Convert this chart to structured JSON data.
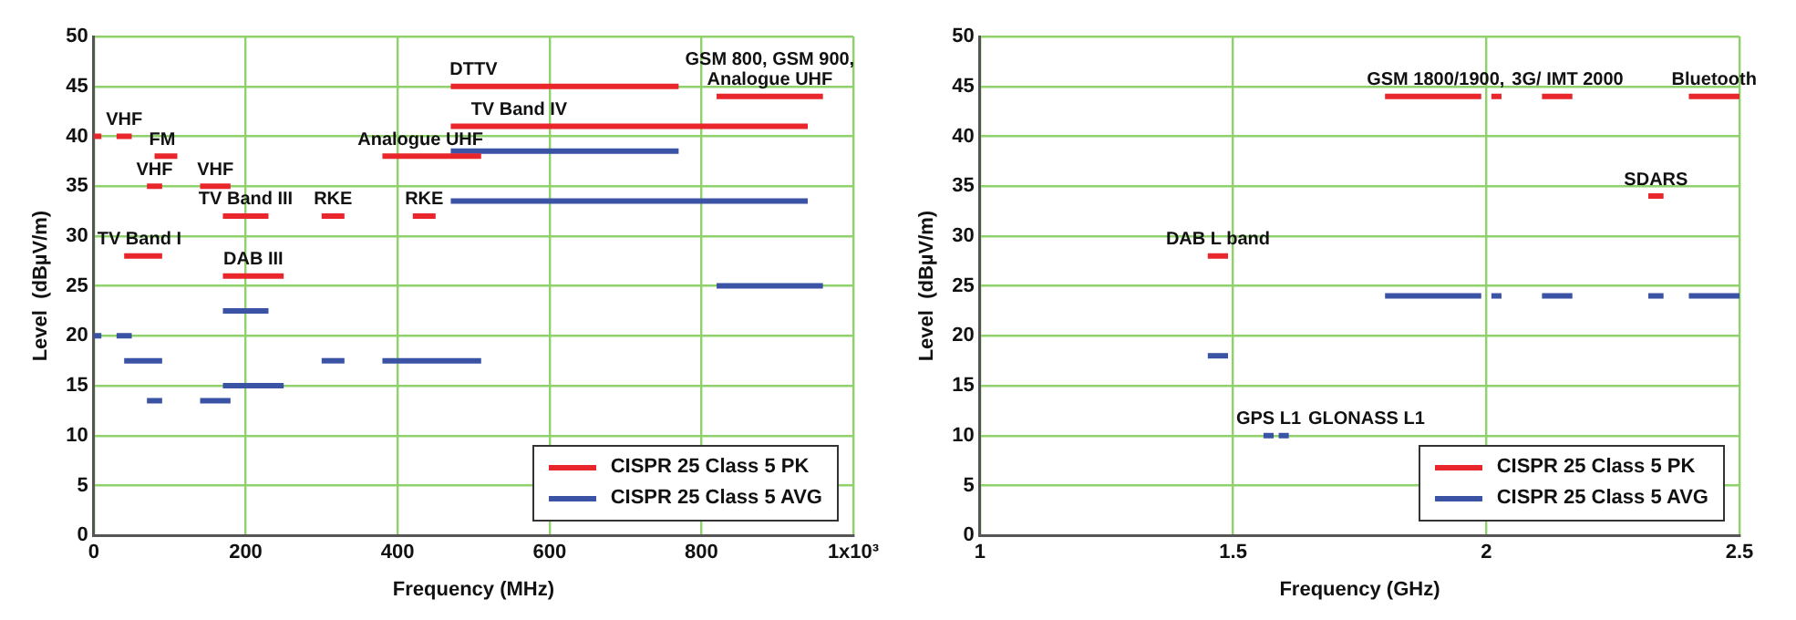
{
  "chart_data": [
    {
      "type": "line",
      "xlabel": "Frequency (MHz)",
      "ylabel": "Level  (dBµV/m)",
      "xlim": [
        0,
        1000
      ],
      "ylim": [
        0,
        50
      ],
      "xticks": [
        0,
        200,
        400,
        600,
        800,
        {
          "value": 1000,
          "label": "1x10³"
        }
      ],
      "yticks": [
        0,
        5,
        10,
        15,
        20,
        25,
        30,
        35,
        40,
        45,
        50
      ],
      "grid": true,
      "legend": "bottom right",
      "marker": "none",
      "line_style": "solid",
      "series": [
        {
          "name": "CISPR 25 Class 5 PK",
          "color": "#e8262b",
          "x": [
            0,
            10
          ],
          "values": [
            40,
            40
          ]
        },
        {
          "color": "#e8262b",
          "x": [
            30,
            50
          ],
          "values": [
            40,
            40
          ]
        },
        {
          "color": "#e8262b",
          "x": [
            80,
            110
          ],
          "values": [
            38,
            38
          ]
        },
        {
          "color": "#e8262b",
          "x": [
            70,
            90
          ],
          "values": [
            35,
            35
          ]
        },
        {
          "color": "#e8262b",
          "x": [
            140,
            180
          ],
          "values": [
            35,
            35
          ]
        },
        {
          "color": "#e8262b",
          "x": [
            40,
            90
          ],
          "values": [
            28,
            28
          ]
        },
        {
          "color": "#e8262b",
          "x": [
            170,
            230
          ],
          "values": [
            32,
            32
          ]
        },
        {
          "color": "#e8262b",
          "x": [
            170,
            250
          ],
          "values": [
            26,
            26
          ]
        },
        {
          "color": "#e8262b",
          "x": [
            300,
            330
          ],
          "values": [
            32,
            32
          ]
        },
        {
          "color": "#e8262b",
          "x": [
            420,
            450
          ],
          "values": [
            32,
            32
          ]
        },
        {
          "color": "#e8262b",
          "x": [
            380,
            510
          ],
          "values": [
            38,
            38
          ]
        },
        {
          "color": "#e8262b",
          "x": [
            470,
            770
          ],
          "values": [
            45,
            45
          ]
        },
        {
          "color": "#e8262b",
          "x": [
            470,
            940
          ],
          "values": [
            41,
            41
          ]
        },
        {
          "color": "#e8262b",
          "x": [
            820,
            960
          ],
          "values": [
            44,
            44
          ]
        },
        {
          "name": "CISPR 25 Class 5 AVG",
          "color": "#3a53a4",
          "x": [
            0,
            10
          ],
          "values": [
            20,
            20
          ]
        },
        {
          "color": "#3a53a4",
          "x": [
            30,
            50
          ],
          "values": [
            20,
            20
          ]
        },
        {
          "color": "#3a53a4",
          "x": [
            40,
            90
          ],
          "values": [
            17.5,
            17.5
          ]
        },
        {
          "color": "#3a53a4",
          "x": [
            70,
            90
          ],
          "values": [
            13.5,
            13.5
          ]
        },
        {
          "color": "#3a53a4",
          "x": [
            140,
            180
          ],
          "values": [
            13.5,
            13.5
          ]
        },
        {
          "color": "#3a53a4",
          "x": [
            170,
            250
          ],
          "values": [
            15,
            15
          ]
        },
        {
          "color": "#3a53a4",
          "x": [
            170,
            230
          ],
          "values": [
            22.5,
            22.5
          ]
        },
        {
          "color": "#3a53a4",
          "x": [
            300,
            330
          ],
          "values": [
            17.5,
            17.5
          ]
        },
        {
          "color": "#3a53a4",
          "x": [
            380,
            510
          ],
          "values": [
            17.5,
            17.5
          ]
        },
        {
          "color": "#3a53a4",
          "x": [
            470,
            770
          ],
          "values": [
            38.5,
            38.5
          ]
        },
        {
          "color": "#3a53a4",
          "x": [
            470,
            940
          ],
          "values": [
            33.5,
            33.5
          ]
        },
        {
          "color": "#3a53a4",
          "x": [
            820,
            960
          ],
          "values": [
            25,
            25
          ]
        }
      ],
      "annotations": [
        {
          "text": "VHF",
          "x": 40,
          "y": 40
        },
        {
          "text": "FM",
          "x": 90,
          "y": 38
        },
        {
          "text": "VHF",
          "x": 80,
          "y": 35
        },
        {
          "text": "VHF",
          "x": 160,
          "y": 35
        },
        {
          "text": "TV Band I",
          "x": 60,
          "y": 28
        },
        {
          "text": "TV Band III",
          "x": 200,
          "y": 32
        },
        {
          "text": "DAB III",
          "x": 210,
          "y": 26
        },
        {
          "text": "RKE",
          "x": 315,
          "y": 32
        },
        {
          "text": "RKE",
          "x": 435,
          "y": 32
        },
        {
          "text": "Analogue UHF",
          "x": 430,
          "y": 38
        },
        {
          "text": "DTTV",
          "x": 500,
          "y": 45
        },
        {
          "text": "TV Band IV",
          "x": 560,
          "y": 41
        },
        {
          "text": "GSM 800, GSM 900, Analogue UHF",
          "x": 890,
          "y": 44
        }
      ]
    },
    {
      "type": "line",
      "xlabel": "Frequency (GHz)",
      "ylabel": "Level  (dBµV/m)",
      "xlim": [
        1,
        2.5
      ],
      "ylim": [
        0,
        50
      ],
      "xticks": [
        1,
        1.5,
        2,
        2.5
      ],
      "yticks": [
        0,
        5,
        10,
        15,
        20,
        25,
        30,
        35,
        40,
        45,
        50
      ],
      "grid": true,
      "legend": "bottom right",
      "marker": "none",
      "line_style": "solid",
      "series": [
        {
          "name": "CISPR 25 Class 5 PK",
          "color": "#e8262b",
          "x": [
            1.45,
            1.49
          ],
          "values": [
            28,
            28
          ]
        },
        {
          "color": "#e8262b",
          "x": [
            1.8,
            1.99
          ],
          "values": [
            44,
            44
          ]
        },
        {
          "color": "#e8262b",
          "x": [
            2.01,
            2.03
          ],
          "values": [
            44,
            44
          ]
        },
        {
          "color": "#e8262b",
          "x": [
            2.11,
            2.17
          ],
          "values": [
            44,
            44
          ]
        },
        {
          "color": "#e8262b",
          "x": [
            2.32,
            2.35
          ],
          "values": [
            34,
            34
          ]
        },
        {
          "color": "#e8262b",
          "x": [
            2.4,
            2.5
          ],
          "values": [
            44,
            44
          ]
        },
        {
          "name": "CISPR 25 Class 5 AVG",
          "color": "#3a53a4",
          "x": [
            1.45,
            1.49
          ],
          "values": [
            18,
            18
          ]
        },
        {
          "color": "#3a53a4",
          "x": [
            1.56,
            1.58
          ],
          "values": [
            10,
            10
          ]
        },
        {
          "color": "#3a53a4",
          "x": [
            1.59,
            1.61
          ],
          "values": [
            10,
            10
          ]
        },
        {
          "color": "#3a53a4",
          "x": [
            1.8,
            1.99
          ],
          "values": [
            24,
            24
          ]
        },
        {
          "color": "#3a53a4",
          "x": [
            2.01,
            2.03
          ],
          "values": [
            24,
            24
          ]
        },
        {
          "color": "#3a53a4",
          "x": [
            2.11,
            2.17
          ],
          "values": [
            24,
            24
          ]
        },
        {
          "color": "#3a53a4",
          "x": [
            2.32,
            2.35
          ],
          "values": [
            24,
            24
          ]
        },
        {
          "color": "#3a53a4",
          "x": [
            2.4,
            2.5
          ],
          "values": [
            24,
            24
          ]
        }
      ],
      "annotations": [
        {
          "text": "DAB L band",
          "x": 1.47,
          "y": 28
        },
        {
          "text": "GPS L1",
          "x": 1.57,
          "y": 10
        },
        {
          "text": "GLONASS L1",
          "x": 1.6,
          "y": 10
        },
        {
          "text": "GSM 1800/1900,",
          "x": 1.9,
          "y": 44
        },
        {
          "text": "3G/ IMT 2000",
          "x": 2.14,
          "y": 44
        },
        {
          "text": "SDARS",
          "x": 2.335,
          "y": 34
        },
        {
          "text": "Bluetooth",
          "x": 2.45,
          "y": 44
        }
      ]
    }
  ]
}
